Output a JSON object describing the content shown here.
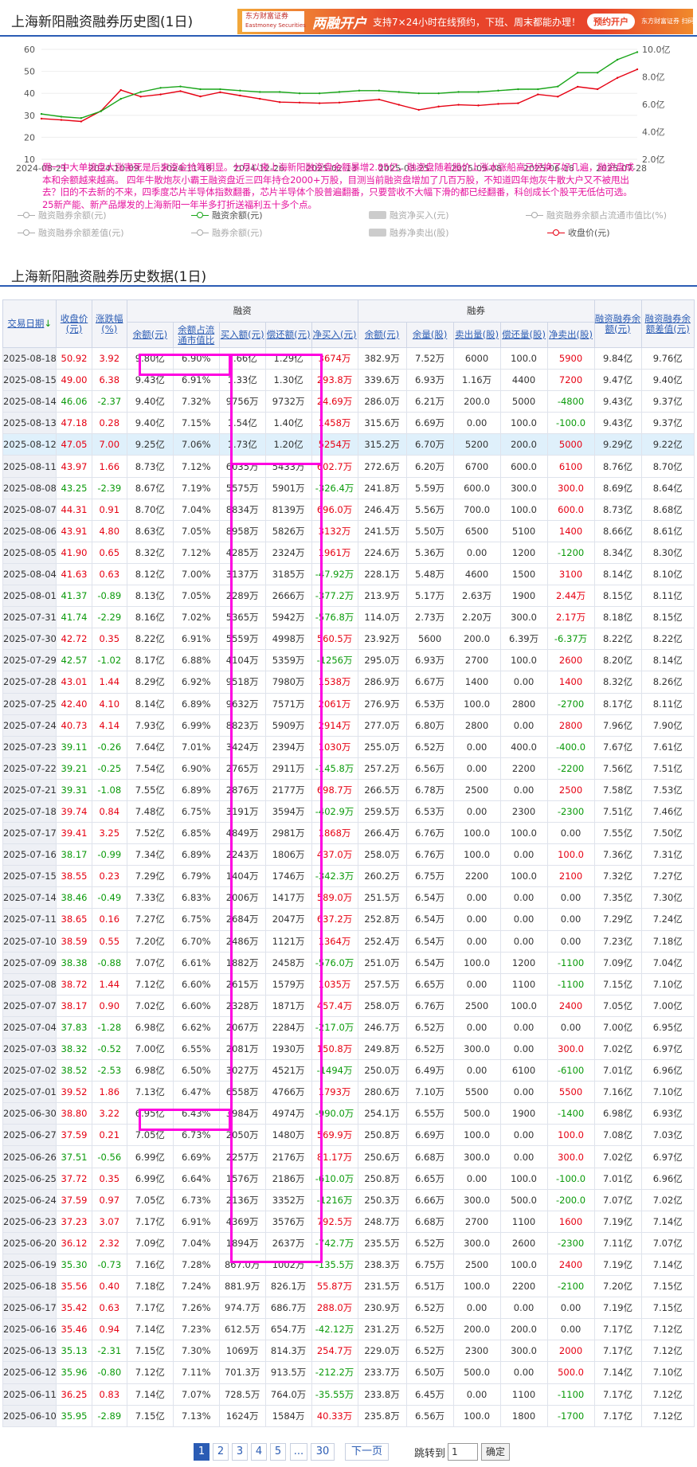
{
  "page_title": "上海新阳融资融券历史图(1日)",
  "ad": {
    "logo": "东方财富证券",
    "logo_sub": "Eastmoney Securities",
    "big": "两融开户",
    "text": "支持7×24小时在线预约，下班、周末都能办理！",
    "button": "预约开户",
    "qr_text": "东方财富证券 扫码开户"
  },
  "chart": {
    "y_left_ticks": [
      "60",
      "50",
      "40",
      "30",
      "20",
      "10"
    ],
    "y_right_ticks": [
      "10.0亿",
      "8.0亿",
      "6.0亿",
      "4.0亿",
      "2.0亿"
    ],
    "x_ticks": [
      "2024-08-21",
      "2024-10-09",
      "2024-11-18",
      "2024-12-26",
      "2025-02-13",
      "2025-03-25",
      "2025-05-08",
      "2025-06-18",
      "2025-07-28"
    ],
    "note": "周一中大单接盘大涨害死是后来资金抢筹明显。七月以来上海新阳融资盘余额暴增2.85亿，融资盘随着股价上涨水涨船高已经换了好几遍，融资盘成本和余额越来越高。 四年牛散炮灰小霸王融资盘近三四年持仓2000+万股，目测当前融资盘增加了几百万股，不知道四年炮灰牛散大户又不被甩出去？旧的不去新的不来，四季度芯片半导体指数翻番，芯片半导体个股普遍翻番，只要营收不大幅下滑的都已经翻番，科创成长个股平无低估可选。25新产能、新产品爆发的上海新阳一年半多打折送福利五十多个点。",
    "legend": [
      "融资融券余额(元)",
      "融资余额(元)",
      "融资净买入(元)",
      "融资融券余额占流通市值比(%)",
      "融资融券余额差值(元)",
      "融券余额(元)",
      "融券净卖出(股)",
      "收盘价(元)"
    ],
    "colors": {
      "financing": "#19a519",
      "price": "#e60012",
      "grey": "#c8c8c8"
    }
  },
  "chart_data": {
    "type": "line",
    "x": [
      "2024-08-21",
      "2024-09-02",
      "2024-09-16",
      "2024-09-27",
      "2024-10-09",
      "2024-10-21",
      "2024-11-01",
      "2024-11-11",
      "2024-11-18",
      "2024-11-29",
      "2024-12-10",
      "2024-12-26",
      "2025-01-08",
      "2025-01-20",
      "2025-02-05",
      "2025-02-13",
      "2025-02-25",
      "2025-03-10",
      "2025-03-25",
      "2025-04-08",
      "2025-04-21",
      "2025-05-08",
      "2025-05-20",
      "2025-06-03",
      "2025-06-18",
      "2025-07-01",
      "2025-07-15",
      "2025-07-28",
      "2025-08-05",
      "2025-08-12",
      "2025-08-18"
    ],
    "series": [
      {
        "name": "收盘价(元)",
        "axis": "left",
        "values": [
          28.5,
          27.9,
          27.2,
          32.0,
          41.5,
          38.5,
          39.5,
          41.0,
          38.6,
          40.5,
          39.0,
          37.5,
          36.0,
          35.8,
          35.5,
          35.8,
          36.5,
          37.2,
          34.8,
          32.5,
          34.0,
          34.8,
          34.5,
          35.2,
          35.5,
          39.5,
          38.5,
          43.0,
          41.9,
          47.05,
          50.92
        ]
      },
      {
        "name": "融资余额(元)",
        "axis": "right",
        "values": [
          5.3,
          5.1,
          5.0,
          5.5,
          6.4,
          6.9,
          7.2,
          7.3,
          7.1,
          7.1,
          7.0,
          6.9,
          6.9,
          6.8,
          6.8,
          6.9,
          7.0,
          7.0,
          6.9,
          6.8,
          6.8,
          6.9,
          6.9,
          7.0,
          7.1,
          7.1,
          7.3,
          8.3,
          8.3,
          9.25,
          9.8
        ]
      }
    ],
    "ylim_left": [
      10,
      60
    ],
    "ylim_right": [
      2,
      10
    ],
    "grid": true,
    "legend_position": "bottom"
  },
  "section2_title": "上海新阳融资融券历史数据(1日)",
  "table": {
    "headers": {
      "date": "交易日期",
      "close": "收盘价(元)",
      "chg": "涨跌幅(%)",
      "rz_group": "融资",
      "rq_group": "融券",
      "rz_bal": "余额(元)",
      "rz_ratio": "余额占流通市值比",
      "rz_buy": "买入额(元)",
      "rz_repay": "偿还额(元)",
      "rz_net": "净买入(元)",
      "rq_bal": "余额(元)",
      "rq_vol": "余量(股)",
      "rq_sell": "卖出量(股)",
      "rq_repay": "偿还量(股)",
      "rq_net": "净卖出(股)",
      "total": "融资融券余额(元)",
      "diff": "融资融券余额差值(元)"
    },
    "rows": [
      [
        "2025-08-18",
        "50.92",
        "3.92",
        "9.80亿",
        "6.90%",
        "1.66亿",
        "1.29亿",
        "3674万",
        "382.9万",
        "7.52万",
        "6000",
        "100.0",
        "5900",
        "9.84亿",
        "9.76亿"
      ],
      [
        "2025-08-15",
        "49.00",
        "6.38",
        "9.43亿",
        "6.91%",
        "1.33亿",
        "1.30亿",
        "293.8万",
        "339.6万",
        "6.93万",
        "1.16万",
        "4400",
        "7200",
        "9.47亿",
        "9.40亿"
      ],
      [
        "2025-08-14",
        "46.06",
        "-2.37",
        "9.40亿",
        "7.32%",
        "9756万",
        "9732万",
        "24.69万",
        "286.0万",
        "6.21万",
        "200.0",
        "5000",
        "-4800",
        "9.43亿",
        "9.37亿"
      ],
      [
        "2025-08-13",
        "47.18",
        "0.28",
        "9.40亿",
        "7.15%",
        "1.54亿",
        "1.40亿",
        "1458万",
        "315.6万",
        "6.69万",
        "0.00",
        "100.0",
        "-100.0",
        "9.43亿",
        "9.37亿"
      ],
      [
        "2025-08-12",
        "47.05",
        "7.00",
        "9.25亿",
        "7.06%",
        "1.73亿",
        "1.20亿",
        "5254万",
        "315.2万",
        "6.70万",
        "5200",
        "200.0",
        "5000",
        "9.29亿",
        "9.22亿"
      ],
      [
        "2025-08-11",
        "43.97",
        "1.66",
        "8.73亿",
        "7.12%",
        "6035万",
        "5433万",
        "602.7万",
        "272.6万",
        "6.20万",
        "6700",
        "600.0",
        "6100",
        "8.76亿",
        "8.70亿"
      ],
      [
        "2025-08-08",
        "43.25",
        "-2.39",
        "8.67亿",
        "7.19%",
        "5575万",
        "5901万",
        "-326.4万",
        "241.8万",
        "5.59万",
        "600.0",
        "300.0",
        "300.0",
        "8.69亿",
        "8.64亿"
      ],
      [
        "2025-08-07",
        "44.31",
        "0.91",
        "8.70亿",
        "7.04%",
        "8834万",
        "8139万",
        "696.0万",
        "246.4万",
        "5.56万",
        "700.0",
        "100.0",
        "600.0",
        "8.73亿",
        "8.68亿"
      ],
      [
        "2025-08-06",
        "43.91",
        "4.80",
        "8.63亿",
        "7.05%",
        "8958万",
        "5826万",
        "3132万",
        "241.5万",
        "5.50万",
        "6500",
        "5100",
        "1400",
        "8.66亿",
        "8.61亿"
      ],
      [
        "2025-08-05",
        "41.90",
        "0.65",
        "8.32亿",
        "7.12%",
        "4285万",
        "2324万",
        "1961万",
        "224.6万",
        "5.36万",
        "0.00",
        "1200",
        "-1200",
        "8.34亿",
        "8.30亿"
      ],
      [
        "2025-08-04",
        "41.63",
        "0.63",
        "8.12亿",
        "7.00%",
        "3137万",
        "3185万",
        "-47.92万",
        "228.1万",
        "5.48万",
        "4600",
        "1500",
        "3100",
        "8.14亿",
        "8.10亿"
      ],
      [
        "2025-08-01",
        "41.37",
        "-0.89",
        "8.13亿",
        "7.05%",
        "2289万",
        "2666万",
        "-377.2万",
        "213.9万",
        "5.17万",
        "2.63万",
        "1900",
        "2.44万",
        "8.15亿",
        "8.11亿"
      ],
      [
        "2025-07-31",
        "41.74",
        "-2.29",
        "8.16亿",
        "7.02%",
        "5365万",
        "5942万",
        "-576.8万",
        "114.0万",
        "2.73万",
        "2.20万",
        "300.0",
        "2.17万",
        "8.18亿",
        "8.15亿"
      ],
      [
        "2025-07-30",
        "42.72",
        "0.35",
        "8.22亿",
        "6.91%",
        "5559万",
        "4998万",
        "560.5万",
        "23.92万",
        "5600",
        "200.0",
        "6.39万",
        "-6.37万",
        "8.22亿",
        "8.22亿"
      ],
      [
        "2025-07-29",
        "42.57",
        "-1.02",
        "8.17亿",
        "6.88%",
        "4104万",
        "5359万",
        "-1256万",
        "295.0万",
        "6.93万",
        "2700",
        "100.0",
        "2600",
        "8.20亿",
        "8.14亿"
      ],
      [
        "2025-07-28",
        "43.01",
        "1.44",
        "8.29亿",
        "6.92%",
        "9518万",
        "7980万",
        "1538万",
        "286.9万",
        "6.67万",
        "1400",
        "0.00",
        "1400",
        "8.32亿",
        "8.26亿"
      ],
      [
        "2025-07-25",
        "42.40",
        "4.10",
        "8.14亿",
        "6.89%",
        "9632万",
        "7571万",
        "2061万",
        "276.9万",
        "6.53万",
        "100.0",
        "2800",
        "-2700",
        "8.17亿",
        "8.11亿"
      ],
      [
        "2025-07-24",
        "40.73",
        "4.14",
        "7.93亿",
        "6.99%",
        "8823万",
        "5909万",
        "2914万",
        "277.0万",
        "6.80万",
        "2800",
        "0.00",
        "2800",
        "7.96亿",
        "7.90亿"
      ],
      [
        "2025-07-23",
        "39.11",
        "-0.26",
        "7.64亿",
        "7.01%",
        "3424万",
        "2394万",
        "1030万",
        "255.0万",
        "6.52万",
        "0.00",
        "400.0",
        "-400.0",
        "7.67亿",
        "7.61亿"
      ],
      [
        "2025-07-22",
        "39.21",
        "-0.25",
        "7.54亿",
        "6.90%",
        "2765万",
        "2911万",
        "-145.8万",
        "257.2万",
        "6.56万",
        "0.00",
        "2200",
        "-2200",
        "7.56亿",
        "7.51亿"
      ],
      [
        "2025-07-21",
        "39.31",
        "-1.08",
        "7.55亿",
        "6.89%",
        "2876万",
        "2177万",
        "698.7万",
        "266.5万",
        "6.78万",
        "2500",
        "0.00",
        "2500",
        "7.58亿",
        "7.53亿"
      ],
      [
        "2025-07-18",
        "39.74",
        "0.84",
        "7.48亿",
        "6.75%",
        "3191万",
        "3594万",
        "-402.9万",
        "259.5万",
        "6.53万",
        "0.00",
        "2300",
        "-2300",
        "7.51亿",
        "7.46亿"
      ],
      [
        "2025-07-17",
        "39.41",
        "3.25",
        "7.52亿",
        "6.85%",
        "4849万",
        "2981万",
        "1868万",
        "266.4万",
        "6.76万",
        "100.0",
        "100.0",
        "0.00",
        "7.55亿",
        "7.50亿"
      ],
      [
        "2025-07-16",
        "38.17",
        "-0.99",
        "7.34亿",
        "6.89%",
        "2243万",
        "1806万",
        "437.0万",
        "258.0万",
        "6.76万",
        "100.0",
        "0.00",
        "100.0",
        "7.36亿",
        "7.31亿"
      ],
      [
        "2025-07-15",
        "38.55",
        "0.23",
        "7.29亿",
        "6.79%",
        "1404万",
        "1746万",
        "-342.3万",
        "260.2万",
        "6.75万",
        "2200",
        "100.0",
        "2100",
        "7.32亿",
        "7.27亿"
      ],
      [
        "2025-07-14",
        "38.46",
        "-0.49",
        "7.33亿",
        "6.83%",
        "2006万",
        "1417万",
        "589.0万",
        "251.5万",
        "6.54万",
        "0.00",
        "0.00",
        "0.00",
        "7.35亿",
        "7.30亿"
      ],
      [
        "2025-07-11",
        "38.65",
        "0.16",
        "7.27亿",
        "6.75%",
        "2684万",
        "2047万",
        "637.2万",
        "252.8万",
        "6.54万",
        "0.00",
        "0.00",
        "0.00",
        "7.29亿",
        "7.24亿"
      ],
      [
        "2025-07-10",
        "38.59",
        "0.55",
        "7.20亿",
        "6.70%",
        "2486万",
        "1121万",
        "1364万",
        "252.4万",
        "6.54万",
        "0.00",
        "0.00",
        "0.00",
        "7.23亿",
        "7.18亿"
      ],
      [
        "2025-07-09",
        "38.38",
        "-0.88",
        "7.07亿",
        "6.61%",
        "1882万",
        "2458万",
        "-576.0万",
        "251.0万",
        "6.54万",
        "100.0",
        "1200",
        "-1100",
        "7.09亿",
        "7.04亿"
      ],
      [
        "2025-07-08",
        "38.72",
        "1.44",
        "7.12亿",
        "6.60%",
        "2615万",
        "1579万",
        "1035万",
        "257.5万",
        "6.65万",
        "0.00",
        "1100",
        "-1100",
        "7.15亿",
        "7.10亿"
      ],
      [
        "2025-07-07",
        "38.17",
        "0.90",
        "7.02亿",
        "6.60%",
        "2328万",
        "1871万",
        "457.4万",
        "258.0万",
        "6.76万",
        "2500",
        "100.0",
        "2400",
        "7.05亿",
        "7.00亿"
      ],
      [
        "2025-07-04",
        "37.83",
        "-1.28",
        "6.98亿",
        "6.62%",
        "2067万",
        "2284万",
        "-217.0万",
        "246.7万",
        "6.52万",
        "0.00",
        "0.00",
        "0.00",
        "7.00亿",
        "6.95亿"
      ],
      [
        "2025-07-03",
        "38.32",
        "-0.52",
        "7.00亿",
        "6.55%",
        "2081万",
        "1930万",
        "150.8万",
        "249.8万",
        "6.52万",
        "300.0",
        "0.00",
        "300.0",
        "7.02亿",
        "6.97亿"
      ],
      [
        "2025-07-02",
        "38.52",
        "-2.53",
        "6.98亿",
        "6.50%",
        "3027万",
        "4521万",
        "-1494万",
        "250.0万",
        "6.49万",
        "0.00",
        "6100",
        "-6100",
        "7.01亿",
        "6.96亿"
      ],
      [
        "2025-07-01",
        "39.52",
        "1.86",
        "7.13亿",
        "6.47%",
        "6558万",
        "4766万",
        "1793万",
        "280.6万",
        "7.10万",
        "5500",
        "0.00",
        "5500",
        "7.16亿",
        "7.10亿"
      ],
      [
        "2025-06-30",
        "38.80",
        "3.22",
        "6.95亿",
        "6.43%",
        "3984万",
        "4974万",
        "-990.0万",
        "254.1万",
        "6.55万",
        "500.0",
        "1900",
        "-1400",
        "6.98亿",
        "6.93亿"
      ],
      [
        "2025-06-27",
        "37.59",
        "0.21",
        "7.05亿",
        "6.73%",
        "2050万",
        "1480万",
        "569.9万",
        "250.8万",
        "6.69万",
        "100.0",
        "0.00",
        "100.0",
        "7.08亿",
        "7.03亿"
      ],
      [
        "2025-06-26",
        "37.51",
        "-0.56",
        "6.99亿",
        "6.69%",
        "2257万",
        "2176万",
        "81.17万",
        "250.6万",
        "6.68万",
        "300.0",
        "0.00",
        "300.0",
        "7.02亿",
        "6.97亿"
      ],
      [
        "2025-06-25",
        "37.72",
        "0.35",
        "6.99亿",
        "6.64%",
        "1576万",
        "2186万",
        "-610.0万",
        "250.8万",
        "6.65万",
        "0.00",
        "100.0",
        "-100.0",
        "7.01亿",
        "6.96亿"
      ],
      [
        "2025-06-24",
        "37.59",
        "0.97",
        "7.05亿",
        "6.73%",
        "2136万",
        "3352万",
        "-1216万",
        "250.3万",
        "6.66万",
        "300.0",
        "500.0",
        "-200.0",
        "7.07亿",
        "7.02亿"
      ],
      [
        "2025-06-23",
        "37.23",
        "3.07",
        "7.17亿",
        "6.91%",
        "4369万",
        "3576万",
        "792.5万",
        "248.7万",
        "6.68万",
        "2700",
        "1100",
        "1600",
        "7.19亿",
        "7.14亿"
      ],
      [
        "2025-06-20",
        "36.12",
        "2.32",
        "7.09亿",
        "7.04%",
        "1894万",
        "2637万",
        "-742.7万",
        "235.5万",
        "6.52万",
        "300.0",
        "2600",
        "-2300",
        "7.11亿",
        "7.07亿"
      ],
      [
        "2025-06-19",
        "35.30",
        "-0.73",
        "7.16亿",
        "7.28%",
        "867.0万",
        "1002万",
        "-135.5万",
        "238.3万",
        "6.75万",
        "2500",
        "100.0",
        "2400",
        "7.19亿",
        "7.14亿"
      ],
      [
        "2025-06-18",
        "35.56",
        "0.40",
        "7.18亿",
        "7.24%",
        "881.9万",
        "826.1万",
        "55.87万",
        "231.5万",
        "6.51万",
        "100.0",
        "2200",
        "-2100",
        "7.20亿",
        "7.15亿"
      ],
      [
        "2025-06-17",
        "35.42",
        "0.63",
        "7.17亿",
        "7.26%",
        "974.7万",
        "686.7万",
        "288.0万",
        "230.9万",
        "6.52万",
        "0.00",
        "0.00",
        "0.00",
        "7.19亿",
        "7.15亿"
      ],
      [
        "2025-06-16",
        "35.46",
        "0.94",
        "7.14亿",
        "7.23%",
        "612.5万",
        "654.7万",
        "-42.12万",
        "231.2万",
        "6.52万",
        "200.0",
        "200.0",
        "0.00",
        "7.17亿",
        "7.12亿"
      ],
      [
        "2025-06-13",
        "35.13",
        "-2.31",
        "7.15亿",
        "7.30%",
        "1069万",
        "814.3万",
        "254.7万",
        "229.0万",
        "6.52万",
        "2300",
        "300.0",
        "2000",
        "7.17亿",
        "7.12亿"
      ],
      [
        "2025-06-12",
        "35.96",
        "-0.80",
        "7.12亿",
        "7.11%",
        "701.3万",
        "913.5万",
        "-212.2万",
        "233.7万",
        "6.50万",
        "500.0",
        "0.00",
        "500.0",
        "7.14亿",
        "7.10亿"
      ],
      [
        "2025-06-11",
        "36.25",
        "0.83",
        "7.14亿",
        "7.07%",
        "728.5万",
        "764.0万",
        "-35.55万",
        "233.8万",
        "6.45万",
        "0.00",
        "1100",
        "-1100",
        "7.17亿",
        "7.12亿"
      ],
      [
        "2025-06-10",
        "35.95",
        "-2.89",
        "7.15亿",
        "7.13%",
        "1624万",
        "1584万",
        "40.33万",
        "235.8万",
        "6.56万",
        "100.0",
        "1800",
        "-1700",
        "7.17亿",
        "7.12亿"
      ]
    ]
  },
  "pager": {
    "pages": [
      "1",
      "2",
      "3",
      "4",
      "5",
      "...",
      "30"
    ],
    "next": "下一页",
    "jump_label": "跳转到",
    "jump_value": "1",
    "confirm": "确定"
  }
}
